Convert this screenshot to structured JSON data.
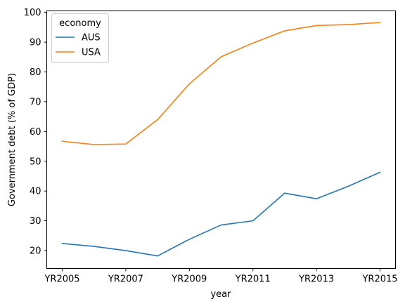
{
  "chart_data": {
    "type": "line",
    "x": [
      "YR2005",
      "YR2006",
      "YR2007",
      "YR2008",
      "YR2009",
      "YR2010",
      "YR2011",
      "YR2012",
      "YR2013",
      "YR2014",
      "YR2015"
    ],
    "xticks": [
      "YR2005",
      "YR2007",
      "YR2009",
      "YR2011",
      "YR2013",
      "YR2015"
    ],
    "series": [
      {
        "name": "AUS",
        "color": "#1f77b4",
        "values": [
          22.4,
          21.4,
          20.0,
          18.2,
          23.8,
          28.6,
          30.0,
          39.3,
          37.4,
          41.6,
          46.3
        ]
      },
      {
        "name": "USA",
        "color": "#ff7f0e",
        "values": [
          56.7,
          55.6,
          55.8,
          64.0,
          76.0,
          85.1,
          89.7,
          93.8,
          95.6,
          95.9,
          96.6
        ]
      }
    ],
    "xlabel": "year",
    "ylabel": "Government debt (% of GDP)",
    "ylim": [
      14,
      100.5
    ],
    "yticks": [
      20,
      30,
      40,
      50,
      60,
      70,
      80,
      90,
      100
    ],
    "legend": {
      "title": "economy",
      "placement": "top-left"
    },
    "grid": false
  }
}
